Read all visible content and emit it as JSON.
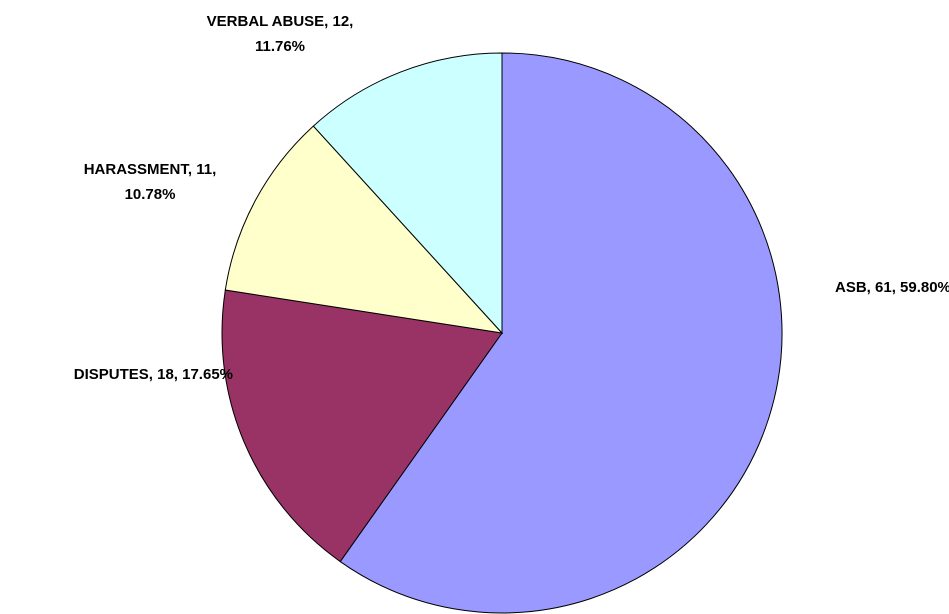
{
  "chart_data": {
    "type": "pie",
    "values": [
      61,
      18,
      11,
      12
    ],
    "value_labels": [
      [
        "ASB, 61, 59.80%"
      ],
      [
        "DISPUTES, 18, 17.65%"
      ],
      [
        "HARASSMENT, 11,",
        "10.78%"
      ],
      [
        "VERBAL ABUSE, 12,",
        "11.76%"
      ]
    ],
    "colors": [
      "#9999ff",
      "#993366",
      "#ffffcc",
      "#ccffff"
    ]
  }
}
